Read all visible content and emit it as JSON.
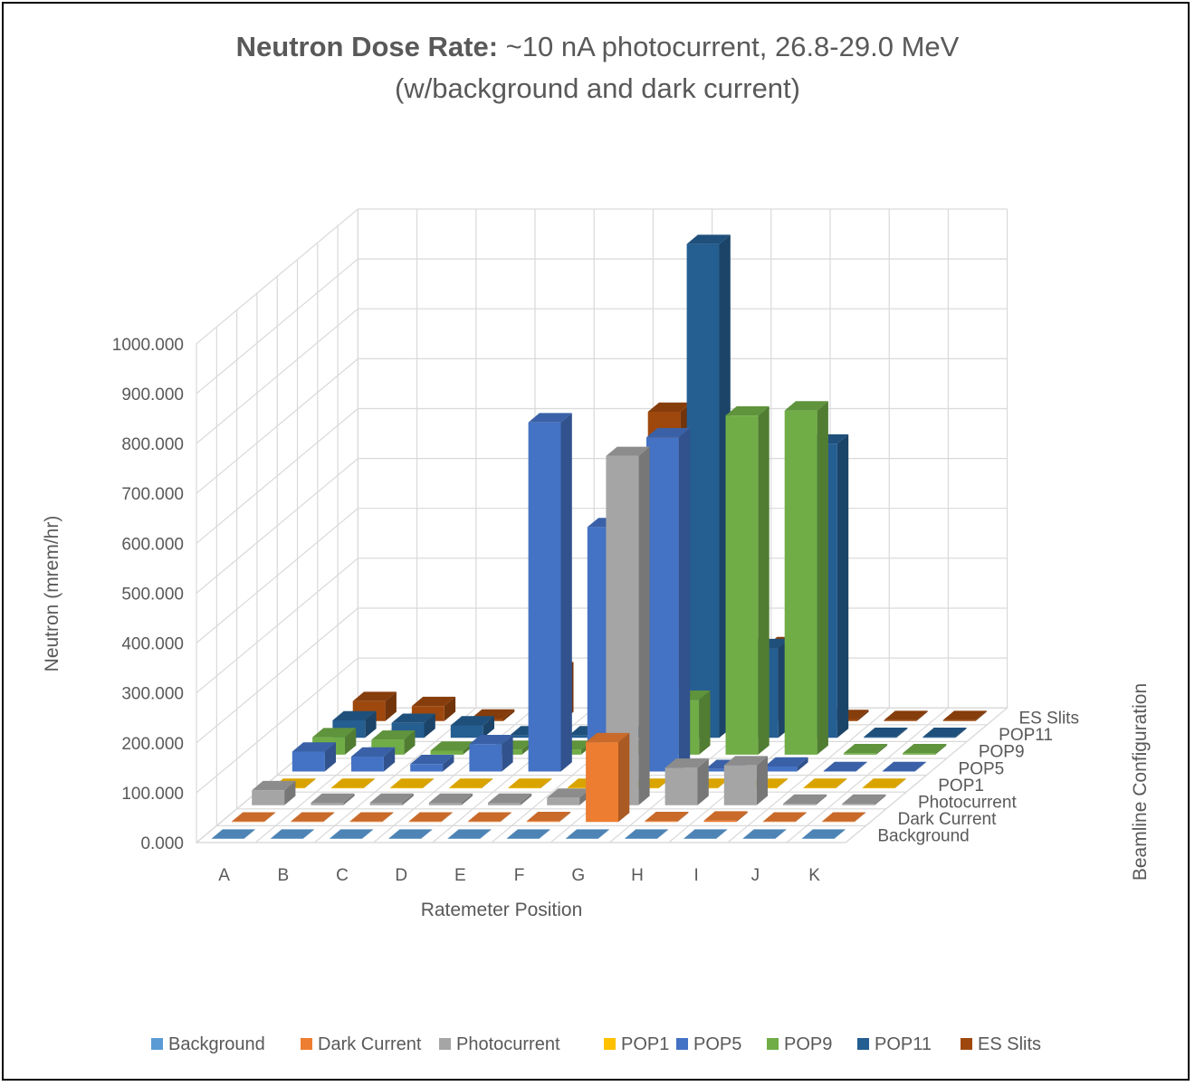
{
  "chart_data": {
    "type": "bar",
    "subtype": "3d-column",
    "title_bold": "Neutron Dose Rate:",
    "title_rest": " ~10 nA photocurrent, 26.8-29.0 MeV",
    "subtitle": "(w/background and dark current)",
    "xlabel": "Ratemeter Position",
    "ylabel": "Neutron (mrem/hr)",
    "zlabel": "Beamline Configuration",
    "ylim": [
      0,
      1000
    ],
    "yticks": [
      "0.000",
      "100.000",
      "200.000",
      "300.000",
      "400.000",
      "500.000",
      "600.000",
      "700.000",
      "800.000",
      "900.000",
      "1000.000"
    ],
    "grid": true,
    "legend_position": "bottom",
    "categories": [
      "A",
      "B",
      "C",
      "D",
      "E",
      "F",
      "G",
      "H",
      "I",
      "J",
      "K"
    ],
    "series": [
      {
        "name": "Background",
        "color": "#5B9BD5",
        "values": [
          0.5,
          0.5,
          0.5,
          0.5,
          0.5,
          0.5,
          0.5,
          0.5,
          0.5,
          0.5,
          0.5
        ]
      },
      {
        "name": "Dark Current",
        "color": "#ED7D31",
        "values": [
          1,
          1,
          1,
          1,
          1,
          2,
          160,
          2,
          3,
          1,
          1
        ]
      },
      {
        "name": "Photocurrent",
        "color": "#A5A5A5",
        "values": [
          30,
          5,
          5,
          5,
          5,
          15,
          700,
          75,
          80,
          3,
          3
        ]
      },
      {
        "name": "POP1",
        "color": "#FFC000",
        "values": [
          1,
          1,
          1,
          1,
          1,
          1,
          1,
          1,
          1,
          1,
          1
        ]
      },
      {
        "name": "POP5",
        "color": "#4472C4",
        "values": [
          40,
          30,
          15,
          55,
          700,
          490,
          670,
          5,
          10,
          1,
          1
        ]
      },
      {
        "name": "POP9",
        "color": "#70AD47",
        "values": [
          35,
          30,
          8,
          10,
          10,
          10,
          110,
          680,
          690,
          3,
          3
        ]
      },
      {
        "name": "POP11",
        "color": "#255E91",
        "values": [
          35,
          30,
          25,
          5,
          5,
          5,
          990,
          180,
          590,
          2,
          2
        ]
      },
      {
        "name": "ES Slits",
        "color": "#9E480E",
        "values": [
          40,
          30,
          5,
          100,
          165,
          620,
          30,
          150,
          4,
          2,
          2
        ]
      }
    ]
  }
}
